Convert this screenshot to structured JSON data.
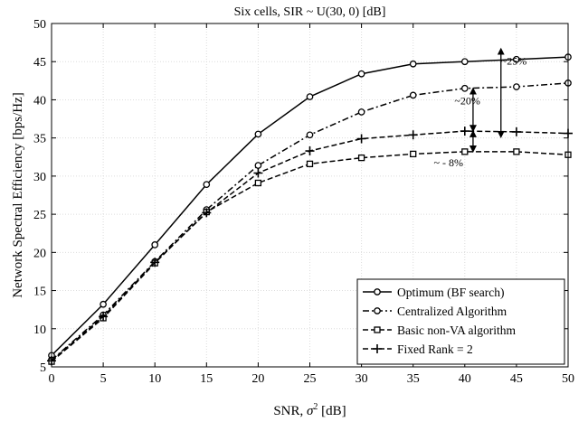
{
  "chart_data": {
    "type": "line",
    "title": "Six cells, SIR ~ U(30, 0) [dB]",
    "xlabel_main": "SNR, ",
    "xlabel_sym": "σ",
    "xlabel_sup": "2",
    "xlabel_unit": " [dB]",
    "ylabel": "Network Spectral Efficiency [bps/Hz]",
    "xlim": [
      0,
      50
    ],
    "ylim": [
      5,
      50
    ],
    "xticks": [
      0,
      5,
      10,
      15,
      20,
      25,
      30,
      35,
      40,
      45,
      50
    ],
    "yticks": [
      5,
      10,
      15,
      20,
      25,
      30,
      35,
      40,
      45,
      50
    ],
    "grid": true,
    "legend_position": "bottom-right",
    "x": [
      0,
      5,
      10,
      15,
      20,
      25,
      30,
      35,
      40,
      45,
      50
    ],
    "series": [
      {
        "name": "Optimum (BF search)",
        "marker": "circle",
        "dash": "solid",
        "values": [
          6.5,
          13.2,
          21.0,
          28.9,
          35.5,
          40.4,
          43.4,
          44.7,
          45.0,
          45.3,
          45.6
        ]
      },
      {
        "name": "Centralized Algorithm",
        "marker": "circle",
        "dash": "dashdot",
        "values": [
          5.9,
          11.8,
          18.8,
          25.6,
          31.4,
          35.4,
          38.4,
          40.6,
          41.5,
          41.7,
          42.2
        ]
      },
      {
        "name": "Basic non-VA algorithm",
        "marker": "square",
        "dash": "dashed",
        "values": [
          5.7,
          11.4,
          18.6,
          25.3,
          29.1,
          31.6,
          32.4,
          32.9,
          33.2,
          33.2,
          32.8
        ]
      },
      {
        "name": "Fixed Rank = 2",
        "marker": "plus",
        "dash": "dashed",
        "values": [
          5.8,
          11.6,
          18.7,
          25.2,
          30.4,
          33.3,
          34.9,
          35.4,
          35.9,
          35.8,
          35.6
        ]
      }
    ],
    "annotations": [
      {
        "text": "~25%",
        "x": 43.5,
        "y": 44.6
      },
      {
        "text": "~20%",
        "x": 39.0,
        "y": 39.4
      },
      {
        "text": "~ - 8%",
        "x": 37.0,
        "y": 31.3
      }
    ],
    "arrows": [
      {
        "x": 43.5,
        "y1": 46.6,
        "y2": 35.2
      },
      {
        "x": 40.8,
        "y1": 41.4,
        "y2": 36.0
      },
      {
        "x": 40.8,
        "y1": 35.8,
        "y2": 33.3
      }
    ]
  }
}
